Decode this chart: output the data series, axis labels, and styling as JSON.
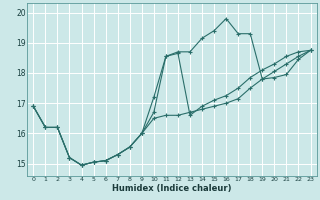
{
  "xlabel": "Humidex (Indice chaleur)",
  "background_color": "#cce8e8",
  "grid_color": "#ffffff",
  "line_color": "#2a6e6a",
  "xlim": [
    -0.5,
    23.5
  ],
  "ylim": [
    14.6,
    20.3
  ],
  "xtick_vals": [
    0,
    1,
    2,
    3,
    4,
    5,
    6,
    7,
    8,
    9,
    10,
    11,
    12,
    13,
    14,
    15,
    16,
    17,
    18,
    19,
    20,
    21,
    22,
    23
  ],
  "ytick_vals": [
    15,
    16,
    17,
    18,
    19,
    20
  ],
  "series1_x": [
    0,
    1,
    2,
    3,
    4,
    5,
    6,
    7,
    8,
    9,
    10,
    11,
    12,
    13,
    14,
    15,
    16,
    17,
    18,
    19,
    20,
    21,
    22,
    23
  ],
  "series1_y": [
    16.9,
    16.2,
    16.2,
    15.2,
    14.95,
    15.05,
    15.1,
    15.3,
    15.55,
    16.0,
    16.5,
    16.6,
    16.6,
    16.7,
    16.8,
    16.9,
    17.0,
    17.15,
    17.5,
    17.8,
    18.05,
    18.3,
    18.55,
    18.75
  ],
  "series2_x": [
    0,
    1,
    2,
    3,
    4,
    5,
    6,
    7,
    8,
    9,
    10,
    11,
    12,
    13,
    14,
    15,
    16,
    17,
    18,
    19,
    20,
    21,
    22,
    23
  ],
  "series2_y": [
    16.9,
    16.2,
    16.2,
    15.2,
    14.95,
    15.05,
    15.1,
    15.3,
    15.55,
    16.0,
    16.7,
    18.55,
    18.65,
    16.6,
    16.9,
    17.1,
    17.25,
    17.5,
    17.85,
    18.1,
    18.3,
    18.55,
    18.7,
    18.75
  ],
  "series3_x": [
    0,
    1,
    2,
    3,
    4,
    5,
    6,
    7,
    8,
    9,
    10,
    11,
    12,
    13,
    14,
    15,
    16,
    17,
    18,
    19,
    20,
    21,
    22,
    23
  ],
  "series3_y": [
    16.9,
    16.2,
    16.2,
    15.2,
    14.95,
    15.05,
    15.1,
    15.3,
    15.55,
    16.0,
    17.2,
    18.55,
    18.7,
    18.7,
    19.15,
    19.4,
    19.8,
    19.3,
    19.3,
    17.8,
    17.85,
    17.95,
    18.45,
    18.75
  ]
}
